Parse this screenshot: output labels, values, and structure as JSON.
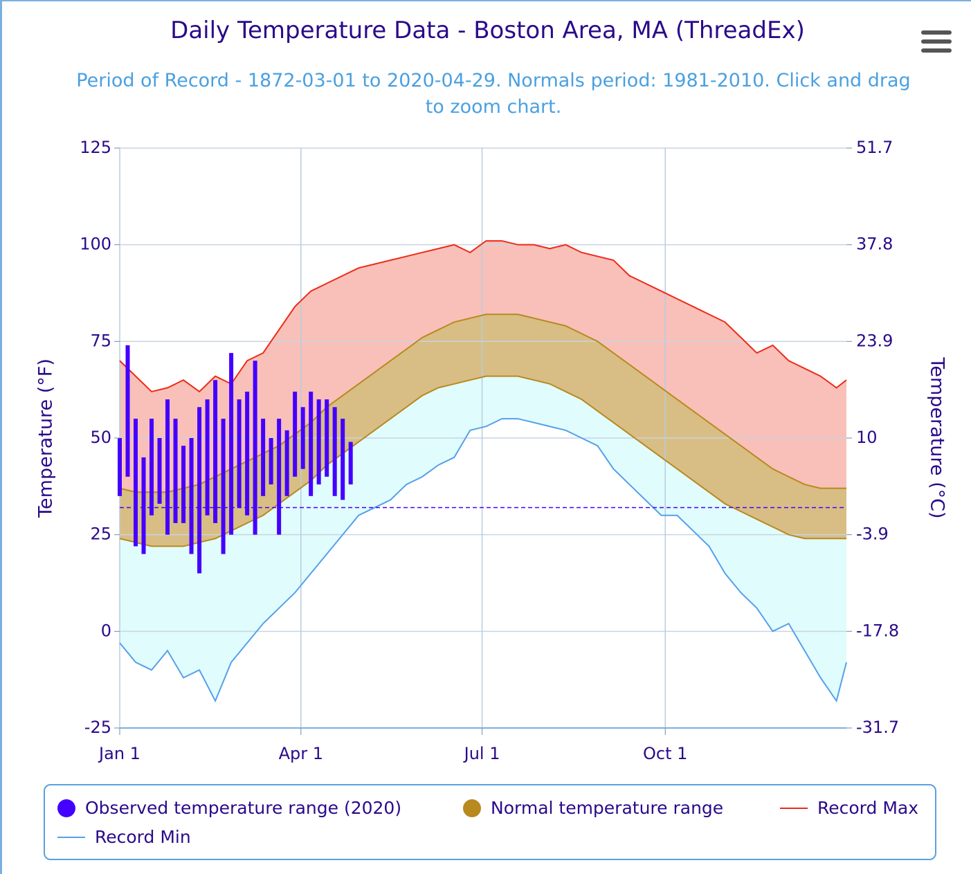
{
  "chart_data": {
    "type": "range",
    "title": "Daily Temperature Data - Boston Area, MA (ThreadEx)",
    "subtitle": "Period of Record - 1872-03-01 to 2020-04-29. Normals period: 1981-2010. Click and drag to zoom chart.",
    "y_label": "Temperature (°F)",
    "y2_label": "Temperature (°C)",
    "xlim": [
      1,
      366
    ],
    "xticks": [
      {
        "value": 1,
        "label": "Jan 1"
      },
      {
        "value": 92,
        "label": "Apr 1"
      },
      {
        "value": 183,
        "label": "Jul 1"
      },
      {
        "value": 275,
        "label": "Oct 1"
      }
    ],
    "ylim": [
      -25,
      125
    ],
    "yticks": [
      -25,
      0,
      25,
      50,
      75,
      100,
      125
    ],
    "y2lim": [
      -31.7,
      51.7
    ],
    "y2ticks": [
      -31.7,
      -17.8,
      -3.9,
      10,
      23.9,
      37.8,
      51.7
    ],
    "grid": true,
    "legend": "bottom",
    "freezing_line": 32,
    "x": [
      1,
      9,
      17,
      25,
      33,
      41,
      49,
      57,
      65,
      73,
      81,
      89,
      97,
      105,
      113,
      121,
      129,
      137,
      145,
      153,
      161,
      169,
      177,
      185,
      193,
      201,
      209,
      217,
      225,
      233,
      241,
      249,
      257,
      265,
      273,
      281,
      289,
      297,
      305,
      313,
      321,
      329,
      337,
      345,
      353,
      361,
      366
    ],
    "series": [
      {
        "name": "Observed temperature range (2020)",
        "color": "#4400ff",
        "x": [
          1,
          5,
          9,
          13,
          17,
          21,
          25,
          29,
          33,
          37,
          41,
          45,
          49,
          53,
          57,
          61,
          65,
          69,
          73,
          77,
          81,
          85,
          89,
          93,
          97,
          101,
          105,
          109,
          113,
          117
        ],
        "low": [
          35,
          40,
          22,
          20,
          30,
          33,
          25,
          28,
          28,
          20,
          15,
          30,
          28,
          20,
          25,
          32,
          30,
          25,
          35,
          38,
          25,
          35,
          40,
          42,
          35,
          38,
          40,
          35,
          34,
          38
        ],
        "high": [
          50,
          74,
          55,
          45,
          55,
          50,
          60,
          55,
          48,
          50,
          58,
          60,
          65,
          55,
          72,
          60,
          62,
          70,
          55,
          50,
          55,
          52,
          62,
          58,
          62,
          60,
          60,
          58,
          55,
          49
        ]
      },
      {
        "name": "Normal temperature range",
        "color": "#b8891f",
        "low": [
          24,
          23,
          22,
          22,
          22,
          23,
          24,
          26,
          28,
          30,
          33,
          36,
          39,
          43,
          46,
          49,
          52,
          55,
          58,
          61,
          63,
          64,
          65,
          66,
          66,
          66,
          65,
          64,
          62,
          60,
          57,
          54,
          51,
          48,
          45,
          42,
          39,
          36,
          33,
          31,
          29,
          27,
          25,
          24,
          24,
          24,
          24
        ],
        "high": [
          37,
          36,
          36,
          36,
          37,
          38,
          40,
          42,
          44,
          46,
          48,
          51,
          54,
          58,
          61,
          64,
          67,
          70,
          73,
          76,
          78,
          80,
          81,
          82,
          82,
          82,
          81,
          80,
          79,
          77,
          75,
          72,
          69,
          66,
          63,
          60,
          57,
          54,
          51,
          48,
          45,
          42,
          40,
          38,
          37,
          37,
          37
        ]
      },
      {
        "name": "Record Max",
        "color": "#ee2a18",
        "values": [
          70,
          66,
          62,
          63,
          65,
          62,
          66,
          64,
          70,
          72,
          78,
          84,
          88,
          90,
          92,
          94,
          95,
          96,
          97,
          98,
          99,
          100,
          98,
          101,
          101,
          100,
          100,
          99,
          100,
          98,
          97,
          96,
          92,
          90,
          88,
          86,
          84,
          82,
          80,
          76,
          72,
          74,
          70,
          68,
          66,
          63,
          65
        ]
      },
      {
        "name": "Record Min",
        "color": "#55a0ea",
        "values": [
          -3,
          -8,
          -10,
          -5,
          -12,
          -10,
          -18,
          -8,
          -3,
          2,
          6,
          10,
          15,
          20,
          25,
          30,
          32,
          34,
          38,
          40,
          43,
          45,
          52,
          53,
          55,
          55,
          54,
          53,
          52,
          50,
          48,
          42,
          38,
          34,
          30,
          30,
          26,
          22,
          15,
          10,
          6,
          0,
          2,
          -5,
          -12,
          -18,
          -8
        ]
      }
    ]
  }
}
